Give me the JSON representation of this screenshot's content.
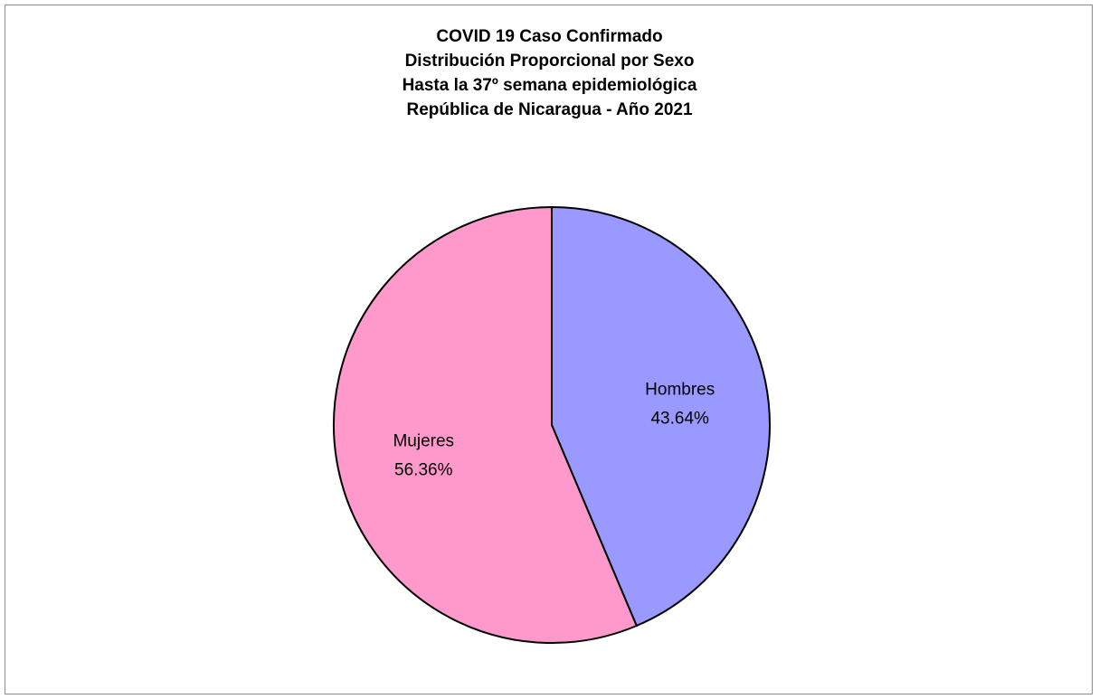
{
  "chart_data": {
    "type": "pie",
    "title_lines": [
      "COVID 19 Caso Confirmado",
      "Distribución Proporcional por Sexo",
      "Hasta la 37º semana epidemiológica",
      "República de Nicaragua - Año 2021"
    ],
    "slices": [
      {
        "name": "Hombres",
        "value": 43.64,
        "value_label": "43.64%",
        "color": "#9999FF"
      },
      {
        "name": "Mujeres",
        "value": 56.36,
        "value_label": "56.36%",
        "color": "#FF99CC"
      }
    ],
    "start": "12 o'clock, clockwise",
    "legend": "none",
    "data_labels": "inside slices (category name and percentage)"
  }
}
